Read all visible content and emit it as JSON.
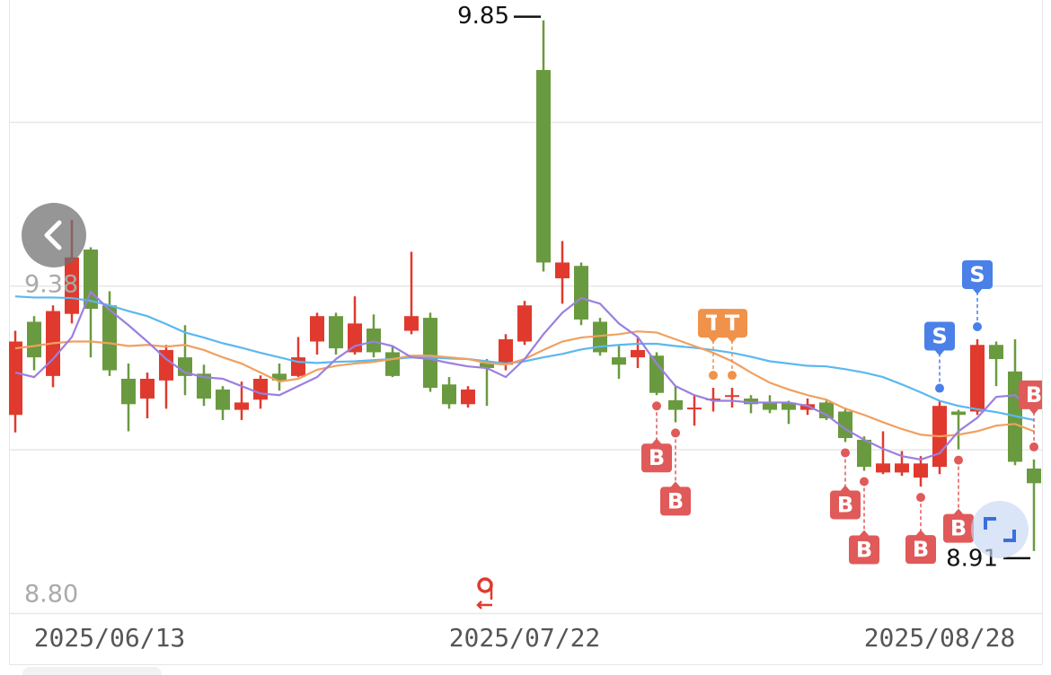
{
  "chart_data": {
    "type": "candlestick",
    "categories": [
      null,
      null,
      null,
      null,
      null,
      "2025/06/13",
      null,
      null,
      null,
      null,
      null,
      null,
      null,
      null,
      null,
      null,
      null,
      null,
      null,
      null,
      null,
      null,
      null,
      null,
      null,
      null,
      null,
      "2025/07/22",
      null,
      null,
      null,
      null,
      null,
      null,
      null,
      null,
      null,
      null,
      null,
      null,
      null,
      null,
      null,
      null,
      null,
      null,
      null,
      null,
      null,
      "2025/08/28",
      null,
      null,
      null,
      null,
      null
    ],
    "open": [
      9.151,
      9.316,
      9.22,
      9.33,
      9.444,
      9.345,
      9.215,
      9.18,
      9.212,
      9.253,
      9.224,
      9.196,
      9.16,
      9.178,
      9.224,
      9.22,
      9.281,
      9.326,
      9.262,
      9.304,
      9.262,
      9.3,
      9.323,
      9.205,
      9.17,
      9.243,
      9.24,
      9.281,
      9.762,
      9.393,
      9.415,
      9.316,
      9.253,
      9.253,
      9.256,
      9.177,
      9.161,
      9.177,
      9.183,
      9.18,
      9.173,
      9.173,
      9.16,
      9.173,
      9.157,
      9.107,
      9.049,
      9.049,
      9.04,
      9.059,
      9.157,
      9.157,
      9.275,
      9.228,
      9.056
    ],
    "close": [
      9.281,
      9.253,
      9.335,
      9.43,
      9.339,
      9.23,
      9.17,
      9.215,
      9.266,
      9.22,
      9.18,
      9.16,
      9.173,
      9.215,
      9.212,
      9.253,
      9.326,
      9.269,
      9.313,
      9.262,
      9.22,
      9.326,
      9.199,
      9.17,
      9.196,
      9.234,
      9.285,
      9.345,
      9.421,
      9.421,
      9.32,
      9.262,
      9.24,
      9.266,
      9.19,
      9.16,
      9.164,
      9.18,
      9.186,
      9.17,
      9.16,
      9.16,
      9.17,
      9.145,
      9.11,
      9.059,
      9.065,
      9.065,
      9.065,
      9.167,
      9.151,
      9.275,
      9.25,
      9.068,
      9.03
    ],
    "high": [
      9.3,
      9.326,
      9.345,
      9.496,
      9.448,
      9.37,
      9.242,
      9.226,
      9.275,
      9.31,
      9.24,
      9.202,
      9.21,
      9.221,
      9.242,
      9.289,
      9.332,
      9.332,
      9.361,
      9.329,
      9.273,
      9.44,
      9.332,
      9.218,
      9.202,
      9.25,
      9.294,
      9.353,
      9.85,
      9.459,
      9.421,
      9.323,
      9.273,
      9.289,
      9.262,
      9.202,
      9.186,
      9.199,
      9.199,
      9.186,
      9.186,
      9.176,
      9.18,
      9.176,
      9.164,
      9.113,
      9.122,
      9.087,
      9.078,
      9.176,
      9.16,
      9.285,
      9.281,
      9.285,
      9.072
    ],
    "low": [
      9.12,
      9.23,
      9.2,
      9.313,
      9.253,
      9.22,
      9.122,
      9.145,
      9.162,
      9.186,
      9.167,
      9.142,
      9.142,
      9.162,
      9.194,
      9.218,
      9.258,
      9.258,
      9.258,
      9.253,
      9.218,
      9.294,
      9.192,
      9.162,
      9.164,
      9.167,
      9.23,
      9.275,
      9.405,
      9.348,
      9.31,
      9.256,
      9.215,
      9.234,
      9.186,
      9.138,
      9.132,
      9.157,
      9.164,
      9.154,
      9.154,
      9.135,
      9.151,
      9.142,
      9.103,
      9.052,
      9.046,
      9.043,
      9.024,
      9.046,
      9.09,
      9.151,
      9.202,
      9.062,
      8.91
    ],
    "up_color": "#e03a2e",
    "down_color": "#6a9a3f",
    "lines": [
      {
        "color": "#5bb8ef",
        "values": [
          9.361,
          9.359,
          9.359,
          9.358,
          9.353,
          9.345,
          9.335,
          9.326,
          9.312,
          9.297,
          9.288,
          9.278,
          9.27,
          9.261,
          9.253,
          9.245,
          9.243,
          9.245,
          9.246,
          9.248,
          9.25,
          9.253,
          9.253,
          9.251,
          9.25,
          9.246,
          9.242,
          9.246,
          9.253,
          9.259,
          9.267,
          9.272,
          9.275,
          9.277,
          9.277,
          9.273,
          9.27,
          9.266,
          9.261,
          9.254,
          9.246,
          9.242,
          9.238,
          9.237,
          9.232,
          9.226,
          9.218,
          9.205,
          9.191,
          9.176,
          9.167,
          9.161,
          9.156,
          9.149,
          9.142
        ]
      },
      {
        "color": "#f0a060",
        "values": [
          9.269,
          9.273,
          9.278,
          9.281,
          9.281,
          9.278,
          9.273,
          9.275,
          9.272,
          9.275,
          9.266,
          9.253,
          9.242,
          9.226,
          9.21,
          9.215,
          9.231,
          9.238,
          9.242,
          9.245,
          9.25,
          9.256,
          9.256,
          9.253,
          9.25,
          9.243,
          9.24,
          9.25,
          9.266,
          9.281,
          9.288,
          9.291,
          9.294,
          9.299,
          9.297,
          9.285,
          9.273,
          9.261,
          9.246,
          9.226,
          9.208,
          9.196,
          9.186,
          9.178,
          9.162,
          9.151,
          9.138,
          9.126,
          9.116,
          9.113,
          9.116,
          9.122,
          9.132,
          9.135,
          9.122
        ]
      },
      {
        "color": "#9b7fe0",
        "values": [
          9.226,
          9.218,
          9.25,
          9.289,
          9.369,
          9.337,
          9.31,
          9.281,
          9.25,
          9.226,
          9.218,
          9.215,
          9.202,
          9.189,
          9.186,
          9.202,
          9.218,
          9.25,
          9.273,
          9.281,
          9.273,
          9.253,
          9.25,
          9.243,
          9.237,
          9.234,
          9.218,
          9.25,
          9.294,
          9.332,
          9.358,
          9.348,
          9.313,
          9.289,
          9.242,
          9.202,
          9.186,
          9.176,
          9.176,
          9.173,
          9.173,
          9.173,
          9.167,
          9.151,
          9.126,
          9.107,
          9.091,
          9.078,
          9.072,
          9.083,
          9.122,
          9.146,
          9.183,
          9.186,
          9.157
        ]
      }
    ],
    "ylim": [
      8.8,
      9.886
    ],
    "yticks": [
      {
        "value": 8.8,
        "label": "8.80"
      },
      9.38
    ],
    "gridlines": [
      9.09,
      9.67
    ],
    "max_index": 28,
    "min_index": 54,
    "markers": [
      {
        "index": 34,
        "label": "B",
        "position": "below"
      },
      {
        "index": 35,
        "label": "B",
        "position": "below"
      },
      {
        "index": 37,
        "label": "T",
        "position": "above"
      },
      {
        "index": 38,
        "label": "T",
        "position": "above"
      },
      {
        "index": 44,
        "label": "B",
        "position": "below"
      },
      {
        "index": 45,
        "label": "B",
        "position": "below"
      },
      {
        "index": 48,
        "label": "B",
        "position": "below"
      },
      {
        "index": 49,
        "label": "S",
        "position": "above"
      },
      {
        "index": 50,
        "label": "B",
        "position": "below"
      },
      {
        "index": 51,
        "label": "S",
        "position": "above"
      },
      {
        "index": 54,
        "label": "B",
        "position": "above"
      }
    ],
    "marker_colors": {
      "B": "#e05a5a",
      "S": "#4a80e8",
      "T": "#f0924a"
    }
  }
}
